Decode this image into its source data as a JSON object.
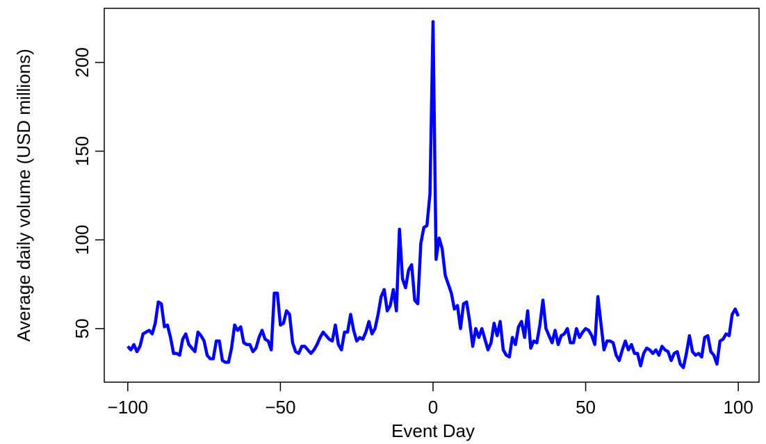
{
  "chart_data": {
    "type": "line",
    "x_label": "Event Day",
    "y_label": "Average daily volume (USD millions)",
    "x": [
      -100,
      -99,
      -98,
      -97,
      -96,
      -95,
      -94,
      -93,
      -92,
      -91,
      -90,
      -89,
      -88,
      -87,
      -86,
      -85,
      -84,
      -83,
      -82,
      -81,
      -80,
      -79,
      -78,
      -77,
      -76,
      -75,
      -74,
      -73,
      -72,
      -71,
      -70,
      -69,
      -68,
      -67,
      -66,
      -65,
      -64,
      -63,
      -62,
      -61,
      -60,
      -59,
      -58,
      -57,
      -56,
      -55,
      -54,
      -53,
      -52,
      -51,
      -50,
      -49,
      -48,
      -47,
      -46,
      -45,
      -44,
      -43,
      -42,
      -41,
      -40,
      -39,
      -38,
      -37,
      -36,
      -35,
      -34,
      -33,
      -32,
      -31,
      -30,
      -29,
      -28,
      -27,
      -26,
      -25,
      -24,
      -23,
      -22,
      -21,
      -20,
      -19,
      -18,
      -17,
      -16,
      -15,
      -14,
      -13,
      -12,
      -11,
      -10,
      -9,
      -8,
      -7,
      -6,
      -5,
      -4,
      -3,
      -2,
      -1,
      0,
      1,
      2,
      3,
      4,
      5,
      6,
      7,
      8,
      9,
      10,
      11,
      12,
      13,
      14,
      15,
      16,
      17,
      18,
      19,
      20,
      21,
      22,
      23,
      24,
      25,
      26,
      27,
      28,
      29,
      30,
      31,
      32,
      33,
      34,
      35,
      36,
      37,
      38,
      39,
      40,
      41,
      42,
      43,
      44,
      45,
      46,
      47,
      48,
      49,
      50,
      51,
      52,
      53,
      54,
      55,
      56,
      57,
      58,
      59,
      60,
      61,
      62,
      63,
      64,
      65,
      66,
      67,
      68,
      69,
      70,
      71,
      72,
      73,
      74,
      75,
      76,
      77,
      78,
      79,
      80,
      81,
      82,
      83,
      84,
      85,
      86,
      87,
      88,
      89,
      90,
      91,
      92,
      93,
      94,
      95,
      96,
      97,
      98,
      99,
      100
    ],
    "values": [
      40,
      38,
      41,
      37,
      40,
      47,
      48,
      49,
      47,
      53,
      65,
      64,
      51,
      52,
      45,
      36,
      36,
      35,
      44,
      47,
      41,
      39,
      37,
      48,
      46,
      43,
      35,
      33,
      33,
      43,
      43,
      32,
      31,
      31,
      39,
      52,
      49,
      51,
      42,
      41,
      41,
      37,
      39,
      45,
      49,
      44,
      43,
      38,
      70,
      70,
      52,
      53,
      60,
      58,
      42,
      37,
      36,
      40,
      40,
      38,
      36,
      38,
      41,
      45,
      48,
      46,
      44,
      43,
      52,
      41,
      38,
      48,
      48,
      58,
      49,
      43,
      45,
      44,
      48,
      54,
      47,
      50,
      58,
      68,
      72,
      60,
      63,
      72,
      60,
      106,
      78,
      73,
      83,
      86,
      66,
      64,
      98,
      107,
      108,
      126,
      223,
      89,
      101,
      95,
      80,
      75,
      70,
      61,
      63,
      50,
      64,
      65,
      54,
      40,
      50,
      45,
      50,
      44,
      38,
      42,
      53,
      46,
      54,
      38,
      35,
      34,
      45,
      41,
      51,
      54,
      45,
      60,
      39,
      43,
      42,
      52,
      66,
      50,
      46,
      42,
      49,
      41,
      46,
      47,
      50,
      42,
      42,
      50,
      45,
      48,
      50,
      49,
      46,
      41,
      68,
      53,
      38,
      43,
      43,
      42,
      35,
      32,
      38,
      43,
      38,
      41,
      36,
      36,
      29,
      36,
      39,
      38,
      36,
      38,
      35,
      40,
      38,
      37,
      32,
      36,
      37,
      30,
      28,
      36,
      46,
      37,
      35,
      36,
      34,
      45,
      46,
      37,
      35,
      30,
      43,
      44,
      47,
      46,
      58,
      61,
      57
    ],
    "color": "#0000ff",
    "xlim": [
      -107.7,
      106.8
    ],
    "ylim": [
      19.8,
      230.5
    ],
    "xticks": [
      {
        "value": -100,
        "label": "−100"
      },
      {
        "value": -50,
        "label": "−50"
      },
      0,
      50,
      100
    ],
    "yticks": [
      50,
      100,
      150,
      200
    ]
  }
}
